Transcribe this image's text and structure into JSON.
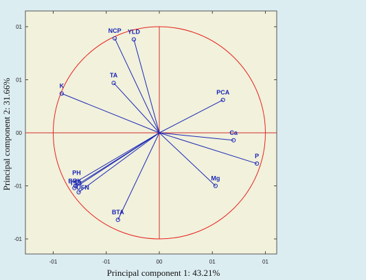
{
  "chart_data": {
    "type": "scatter",
    "subtype": "pca-correlation-circle",
    "xlabel": "Principal component 1: 43.21%",
    "ylabel": "Principal component 2: 31.66%",
    "xlim": [
      -1.1,
      1.1
    ],
    "ylim": [
      -1.1,
      1.1
    ],
    "x_tick_values": [
      -1.0,
      -0.5,
      0.0,
      0.5,
      1.0
    ],
    "x_tick_labels": [
      "-01",
      "-01",
      "00",
      "01",
      "01"
    ],
    "y_tick_values": [
      1.0,
      0.5,
      0.0,
      -0.5,
      -1.0
    ],
    "y_tick_labels": [
      "01",
      "01",
      "00",
      "-01",
      "-01"
    ],
    "grid": false,
    "unit_circle": true,
    "colors": {
      "background": "#dcedf2",
      "plot_area": "#f1f1dc",
      "circle": "#e8201c",
      "axes_cross": "#d42a2a",
      "vectors": "#1a26b4",
      "labels": "#1a26b4"
    },
    "points": [
      {
        "label": "NCP",
        "x": -0.42,
        "y": 0.89
      },
      {
        "label": "YLD",
        "x": -0.24,
        "y": 0.88
      },
      {
        "label": "TA",
        "x": -0.43,
        "y": 0.47
      },
      {
        "label": "K",
        "x": -0.92,
        "y": 0.37
      },
      {
        "label": "PCA",
        "x": 0.6,
        "y": 0.31
      },
      {
        "label": "Ca",
        "x": 0.7,
        "y": -0.07
      },
      {
        "label": "P",
        "x": 0.92,
        "y": -0.29
      },
      {
        "label": "Mg",
        "x": 0.53,
        "y": -0.5
      },
      {
        "label": "PH",
        "x": -0.78,
        "y": -0.46
      },
      {
        "label": "BRX",
        "x": -0.79,
        "y": -0.5
      },
      {
        "label": "TSS",
        "x": -0.8,
        "y": -0.52
      },
      {
        "label": "UFN",
        "x": -0.76,
        "y": -0.56
      },
      {
        "label": "BTA",
        "x": -0.39,
        "y": -0.82
      }
    ]
  }
}
